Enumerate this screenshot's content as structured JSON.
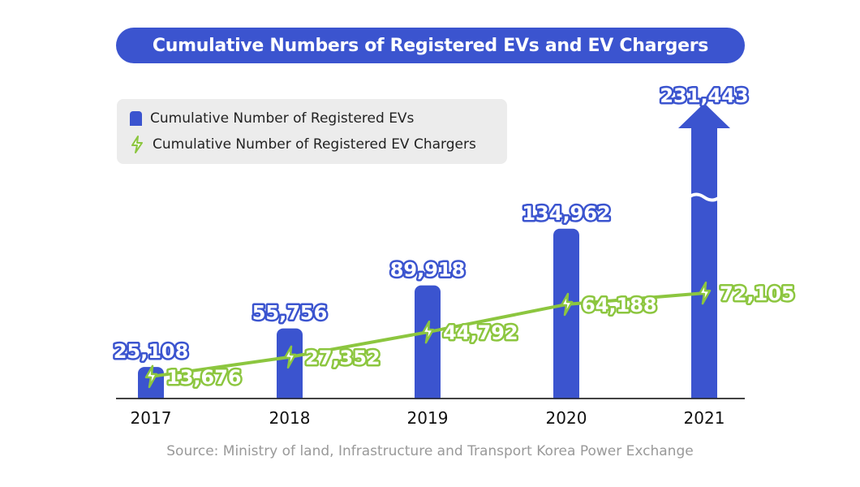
{
  "title": "Cumulative Numbers of Registered EVs and EV Chargers",
  "legend": {
    "evs": "Cumulative Number of Registered EVs",
    "chargers": "Cumulative Number of Registered EV Chargers"
  },
  "source": "Source: Ministry of land, Infrastructure and Transport Korea Power Exchange",
  "colors": {
    "ev_bar": "#3b54cf",
    "charger_line": "#8cc63f",
    "title_bg": "#3b54cf"
  },
  "chart_data": {
    "type": "bar",
    "categories": [
      "2017",
      "2018",
      "2019",
      "2020",
      "2021"
    ],
    "series": [
      {
        "name": "Cumulative Number of Registered EVs",
        "type": "bar",
        "values": [
          25108,
          55756,
          89918,
          134962,
          231443
        ],
        "labels": [
          "25,108",
          "55,756",
          "89,918",
          "134,962",
          "231,443"
        ],
        "color": "#3b54cf"
      },
      {
        "name": "Cumulative Number of Registered EV Chargers",
        "type": "line",
        "values": [
          13676,
          27352,
          44792,
          64188,
          72105
        ],
        "labels": [
          "13,676",
          "27,352",
          "44,792",
          "64,188",
          "72,105"
        ],
        "color": "#8cc63f"
      }
    ],
    "broken_axis": true,
    "grid": false,
    "legend_position": "top-left"
  }
}
